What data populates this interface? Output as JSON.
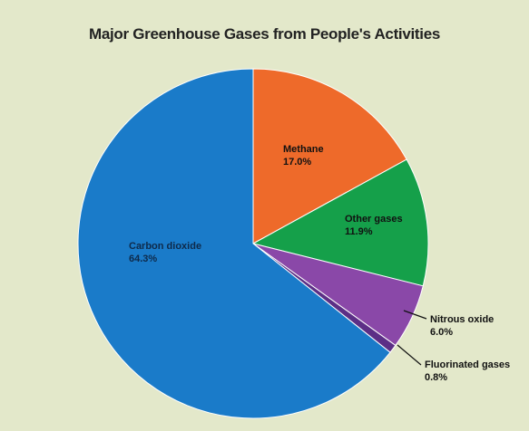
{
  "chart_data": {
    "type": "pie",
    "title": "Major Greenhouse Gases from People's Activities",
    "slices": [
      {
        "label": "Methane",
        "value": 17.0,
        "display": "17.0%",
        "color": "#ee6a2a"
      },
      {
        "label": "Other gases",
        "value": 11.9,
        "display": "11.9%",
        "color": "#15a04a"
      },
      {
        "label": "Nitrous oxide",
        "value": 6.0,
        "display": "6.0%",
        "color": "#8a48a8"
      },
      {
        "label": "Fluorinated gases",
        "value": 0.8,
        "display": "0.8%",
        "color": "#5c2f86"
      },
      {
        "label": "Carbon dioxide",
        "value": 64.3,
        "display": "64.3%",
        "color": "#1a7bc9"
      }
    ],
    "start_angle": "12 o'clock",
    "direction": "clockwise",
    "legend": "none (labels on and beside slices)"
  }
}
